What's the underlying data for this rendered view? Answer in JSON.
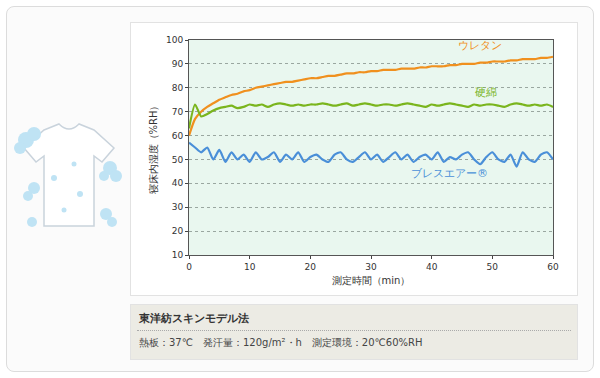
{
  "chart_data": {
    "type": "line",
    "x_label": "測定時間（min）",
    "y_label": "寝床内湿度（%RH）",
    "x": [
      0,
      1,
      2,
      3,
      4,
      5,
      6,
      7,
      8,
      9,
      10,
      11,
      12,
      13,
      14,
      15,
      16,
      17,
      18,
      19,
      20,
      21,
      22,
      23,
      24,
      25,
      26,
      27,
      28,
      29,
      30,
      31,
      32,
      33,
      34,
      35,
      36,
      37,
      38,
      39,
      40,
      41,
      42,
      43,
      44,
      45,
      46,
      47,
      48,
      49,
      50,
      51,
      52,
      53,
      54,
      55,
      56,
      57,
      58,
      59,
      60
    ],
    "series": [
      {
        "name": "ウレタン",
        "color": "#f0901e",
        "values": [
          60,
          67,
          70,
          72,
          73.5,
          75,
          76,
          77,
          77.5,
          78.5,
          79,
          80,
          80.5,
          81,
          81.5,
          82,
          82.5,
          82.5,
          83,
          83.5,
          84,
          84,
          84.5,
          85,
          85,
          85.5,
          86,
          86,
          86.5,
          86.5,
          87,
          87,
          87.5,
          87.5,
          87.5,
          88,
          88,
          88,
          88.5,
          88.5,
          89,
          89,
          89,
          89.5,
          89.5,
          90,
          90,
          90,
          90.5,
          90.5,
          91,
          91,
          91,
          91.5,
          91.5,
          92,
          92,
          92,
          92.5,
          92.5,
          93
        ]
      },
      {
        "name": "硬綿",
        "color": "#7ab51d",
        "values": [
          63,
          73,
          68,
          69,
          70.5,
          71.5,
          72,
          72.5,
          71.5,
          72,
          73,
          72.5,
          73,
          72,
          73,
          73.5,
          73,
          72.5,
          73,
          72.5,
          73,
          73,
          73.5,
          73,
          72.5,
          73,
          73.5,
          72.5,
          73,
          73.5,
          73,
          72.5,
          73,
          73,
          72.5,
          73,
          73.5,
          73,
          72.5,
          72,
          73,
          72.5,
          73,
          73.5,
          73,
          72.5,
          72,
          73,
          72.5,
          73,
          73,
          72.5,
          72,
          73,
          73.5,
          73,
          72.5,
          73,
          72.5,
          73,
          72
        ]
      },
      {
        "name": "ブレスエアー®",
        "color": "#4a8fd8",
        "values": [
          57,
          55,
          53,
          55,
          50,
          54,
          49,
          53,
          50,
          52,
          49,
          53,
          50,
          51,
          53,
          49,
          52,
          50,
          53,
          49,
          51,
          52,
          50,
          49,
          52,
          53,
          50,
          49,
          51,
          53,
          50,
          52,
          49,
          51,
          53,
          50,
          52,
          49,
          51,
          52,
          50,
          53,
          49,
          51,
          50,
          52,
          53,
          50,
          48,
          51,
          53,
          50,
          49,
          52,
          47,
          53,
          50,
          49,
          52,
          53,
          50
        ]
      }
    ],
    "xlim": [
      0,
      60
    ],
    "xticks": [
      0,
      10,
      20,
      30,
      40,
      50,
      60
    ],
    "ylim": [
      10,
      100
    ],
    "yticks": [
      10,
      20,
      30,
      40,
      50,
      60,
      70,
      80,
      90,
      100
    ],
    "grid": true
  },
  "caption": {
    "title": "東洋紡スキンモデル法",
    "note": "熱板：37℃　発汗量：120g/m²・h　測定環境：20℃60%RH"
  }
}
